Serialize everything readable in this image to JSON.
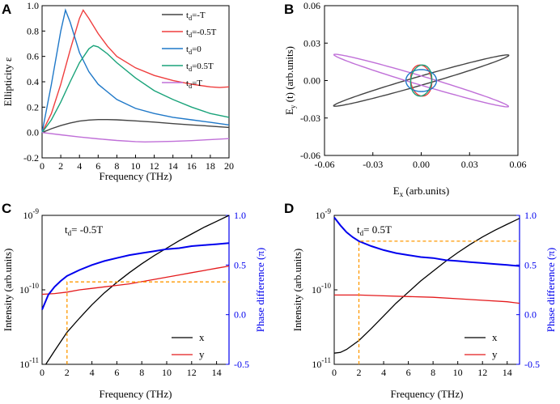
{
  "figure": {
    "panel_letters": [
      "A",
      "B",
      "C",
      "D"
    ]
  },
  "chart_data": [
    {
      "panel": "A",
      "type": "line",
      "xlabel": "Frequency (THz)",
      "ylabel": "Ellipticity ε",
      "xlim": [
        0,
        20
      ],
      "ylim": [
        -0.2,
        1.0
      ],
      "xticks": [
        "0",
        "2",
        "4",
        "6",
        "8",
        "10",
        "12",
        "14",
        "16",
        "18",
        "20"
      ],
      "yticks": [
        "-0.2",
        "0.0",
        "0.2",
        "0.4",
        "0.6",
        "0.8",
        "1.0"
      ],
      "legend_position": "top-right",
      "series": [
        {
          "name": "-T",
          "color": "#444444",
          "x": [
            0,
            1,
            2,
            3,
            4,
            5,
            6,
            7,
            8,
            10,
            12,
            14,
            16,
            18,
            20
          ],
          "y": [
            0.0,
            0.03,
            0.055,
            0.075,
            0.09,
            0.098,
            0.102,
            0.102,
            0.1,
            0.092,
            0.082,
            0.07,
            0.06,
            0.05,
            0.04
          ]
        },
        {
          "name": "-0.5T",
          "color": "#ef3e3e",
          "x": [
            0,
            1,
            2,
            3,
            4,
            4.4,
            5,
            6,
            7,
            8,
            10,
            12,
            14,
            16,
            18,
            19,
            20
          ],
          "y": [
            0.0,
            0.15,
            0.38,
            0.65,
            0.9,
            0.965,
            0.9,
            0.78,
            0.68,
            0.6,
            0.51,
            0.45,
            0.41,
            0.38,
            0.36,
            0.355,
            0.36
          ]
        },
        {
          "name": "0",
          "color": "#1f78c8",
          "x": [
            0,
            1,
            2,
            2.5,
            3,
            4,
            5,
            6,
            8,
            10,
            12,
            14,
            16,
            18,
            20
          ],
          "y": [
            0.0,
            0.38,
            0.8,
            0.965,
            0.87,
            0.63,
            0.48,
            0.38,
            0.26,
            0.19,
            0.15,
            0.12,
            0.1,
            0.08,
            0.06
          ]
        },
        {
          "name": "0.5T",
          "color": "#1aa37a",
          "x": [
            0,
            1,
            2,
            3,
            4,
            5,
            5.5,
            6,
            7,
            8,
            10,
            12,
            14,
            16,
            18,
            20
          ],
          "y": [
            0.0,
            0.1,
            0.24,
            0.4,
            0.55,
            0.66,
            0.685,
            0.675,
            0.62,
            0.55,
            0.43,
            0.33,
            0.26,
            0.2,
            0.15,
            0.12
          ]
        },
        {
          "name": "T",
          "color": "#c070d8",
          "x": [
            0,
            2,
            4,
            6,
            8,
            10,
            11,
            12,
            14,
            16,
            18,
            20
          ],
          "y": [
            0.0,
            -0.018,
            -0.035,
            -0.05,
            -0.063,
            -0.072,
            -0.074,
            -0.073,
            -0.07,
            -0.064,
            -0.056,
            -0.048
          ]
        }
      ]
    },
    {
      "panel": "B",
      "type": "line",
      "xlabel_main": "E",
      "xlabel_sub": "x",
      "xlabel_rest": " (arb.units)",
      "ylabel_main": "E",
      "ylabel_sub": "y",
      "ylabel_rest": " (t) (arb.units)",
      "xlim": [
        -0.06,
        0.06
      ],
      "ylim": [
        -0.06,
        0.06
      ],
      "xticks": [
        "-0.06",
        "-0.03",
        "0.00",
        "0.03",
        "0.06"
      ],
      "yticks": [
        "-0.06",
        "-0.03",
        "0.00",
        "0.03",
        "0.06"
      ],
      "ellipses": [
        {
          "name": "-T",
          "color": "#444444",
          "semi_major": 0.058,
          "semi_minor": 0.0035,
          "angle_deg": 20.5
        },
        {
          "name": "T",
          "color": "#c070d8",
          "semi_major": 0.058,
          "semi_minor": 0.0035,
          "angle_deg": -21.0
        },
        {
          "name": "-0.5T",
          "color": "#ef3e3e",
          "semi_major": 0.0125,
          "semi_minor": 0.0065,
          "angle_deg": 95
        },
        {
          "name": "0",
          "color": "#1f78c8",
          "semi_major": 0.0095,
          "semi_minor": 0.0088,
          "angle_deg": 0
        },
        {
          "name": "0.5T",
          "color": "#1aa37a",
          "semi_major": 0.0125,
          "semi_minor": 0.0065,
          "angle_deg": 85
        }
      ]
    },
    {
      "panel": "C",
      "type": "line",
      "annotation_main": "t",
      "annotation_sub": "d",
      "annotation_rest": "= -0.5T",
      "xlabel": "Frequency (THz)",
      "ylabel_left": "Intensity (arb.units)",
      "ylabel_right": "Phase difference (π)",
      "xlim": [
        0,
        15
      ],
      "ylim_left_log10": [
        -11,
        -9
      ],
      "ylim_right": [
        -0.5,
        1.0
      ],
      "xticks": [
        "0",
        "2",
        "4",
        "6",
        "8",
        "10",
        "12",
        "14"
      ],
      "yticks_left": [
        {
          "base": "10",
          "exp": "-11"
        },
        {
          "base": "10",
          "exp": "-10"
        },
        {
          "base": "10",
          "exp": "-9"
        }
      ],
      "yticks_right": [
        "-0.5",
        "0.0",
        "0.5",
        "1.0"
      ],
      "legend": [
        {
          "name": "x",
          "color": "#000000"
        },
        {
          "name": "y",
          "color": "#e41a1c"
        }
      ],
      "series": [
        {
          "name": "x",
          "axis": "left",
          "color": "#000000",
          "x": [
            0.3,
            1,
            2,
            3,
            4,
            5,
            6,
            7,
            8,
            9,
            10,
            11,
            12,
            13,
            14,
            15
          ],
          "y_log10": [
            -11.0,
            -10.82,
            -10.57,
            -10.38,
            -10.2,
            -10.04,
            -9.9,
            -9.77,
            -9.65,
            -9.54,
            -9.44,
            -9.34,
            -9.25,
            -9.16,
            -9.08,
            -9.0
          ]
        },
        {
          "name": "y",
          "axis": "left",
          "color": "#e41a1c",
          "x": [
            0,
            1,
            2,
            3,
            4,
            5,
            6,
            7,
            8,
            9,
            10,
            11,
            12,
            13,
            14,
            15
          ],
          "y_log10": [
            -10.06,
            -10.05,
            -10.03,
            -10.0,
            -9.98,
            -9.96,
            -9.94,
            -9.92,
            -9.89,
            -9.86,
            -9.83,
            -9.8,
            -9.77,
            -9.74,
            -9.71,
            -9.68
          ]
        },
        {
          "name": "phase",
          "axis": "right",
          "color": "#0000ee",
          "x": [
            0,
            0.5,
            1,
            1.5,
            2,
            3,
            4,
            5,
            6,
            7,
            8,
            9,
            10,
            11,
            12,
            13,
            14,
            15
          ],
          "y": [
            0.05,
            0.2,
            0.28,
            0.34,
            0.39,
            0.45,
            0.5,
            0.54,
            0.57,
            0.6,
            0.62,
            0.64,
            0.66,
            0.67,
            0.69,
            0.7,
            0.71,
            0.72
          ]
        },
        {
          "name": "guide",
          "axis": "right",
          "color": "#ff9900",
          "dashed": true,
          "x": [
            2,
            2,
            15
          ],
          "y": [
            -0.5,
            0.33,
            0.33
          ]
        }
      ]
    },
    {
      "panel": "D",
      "type": "line",
      "annotation_main": "t",
      "annotation_sub": "d",
      "annotation_rest": "= 0.5T",
      "xlabel": "Frequency (THz)",
      "ylabel_left": "Intensity (arb.units)",
      "ylabel_right": "Phase difference (π)",
      "xlim": [
        0,
        15
      ],
      "ylim_left_log10": [
        -11,
        -9
      ],
      "ylim_right": [
        -0.5,
        1.0
      ],
      "xticks": [
        "0",
        "2",
        "4",
        "6",
        "8",
        "10",
        "12",
        "14"
      ],
      "yticks_left": [
        {
          "base": "10",
          "exp": "-11"
        },
        {
          "base": "10",
          "exp": "-10"
        },
        {
          "base": "10",
          "exp": "-9"
        }
      ],
      "yticks_right": [
        "-0.5",
        "0.0",
        "0.5",
        "1.0"
      ],
      "legend": [
        {
          "name": "x",
          "color": "#000000"
        },
        {
          "name": "y",
          "color": "#e41a1c"
        }
      ],
      "series": [
        {
          "name": "x",
          "axis": "left",
          "color": "#000000",
          "x": [
            0,
            0.5,
            1,
            2,
            3,
            4,
            5,
            6,
            7,
            8,
            9,
            10,
            11,
            12,
            13,
            14,
            15
          ],
          "y_log10": [
            -10.85,
            -10.84,
            -10.8,
            -10.68,
            -10.52,
            -10.35,
            -10.18,
            -10.03,
            -9.88,
            -9.75,
            -9.62,
            -9.5,
            -9.39,
            -9.29,
            -9.2,
            -9.12,
            -9.04
          ]
        },
        {
          "name": "y",
          "axis": "left",
          "color": "#e41a1c",
          "x": [
            0,
            2,
            4,
            6,
            8,
            10,
            12,
            14,
            15
          ],
          "y_log10": [
            -10.07,
            -10.07,
            -10.08,
            -10.09,
            -10.1,
            -10.12,
            -10.14,
            -10.16,
            -10.18
          ]
        },
        {
          "name": "phase",
          "axis": "right",
          "color": "#0000ee",
          "x": [
            0,
            0.5,
            1,
            1.5,
            2,
            3,
            4,
            5,
            6,
            7,
            8,
            9,
            10,
            11,
            12,
            13,
            14,
            15
          ],
          "y": [
            0.98,
            0.9,
            0.83,
            0.78,
            0.74,
            0.69,
            0.65,
            0.62,
            0.6,
            0.58,
            0.57,
            0.55,
            0.54,
            0.53,
            0.52,
            0.51,
            0.5,
            0.49
          ]
        },
        {
          "name": "guide",
          "axis": "right",
          "color": "#ff9900",
          "dashed": true,
          "x": [
            2,
            2,
            15
          ],
          "y": [
            -0.5,
            0.74,
            0.74
          ]
        }
      ]
    }
  ]
}
